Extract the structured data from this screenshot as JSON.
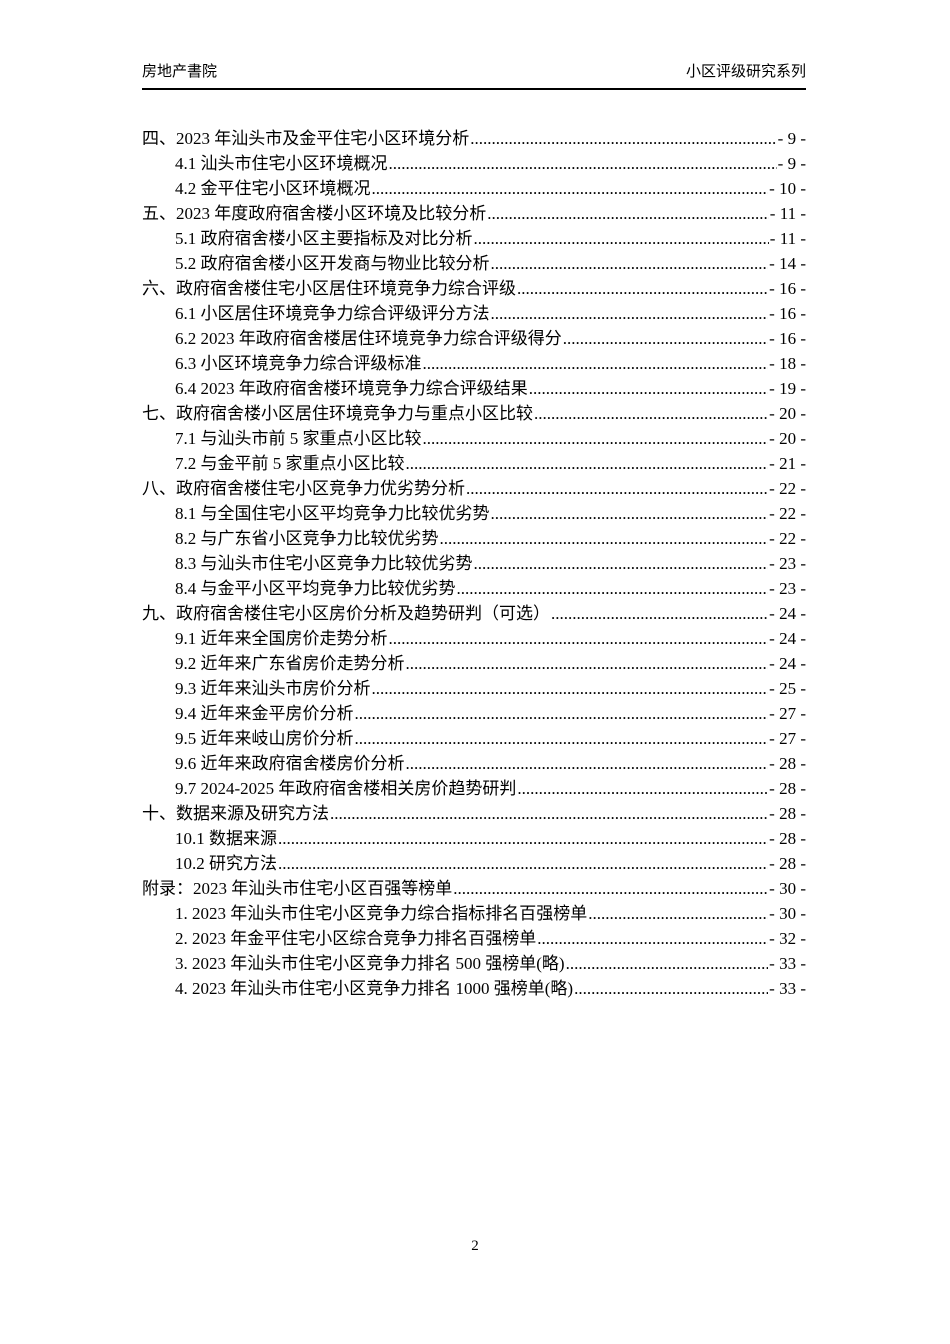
{
  "header": {
    "left": "房地产書院",
    "right": "小区评级研究系列"
  },
  "toc": {
    "entries": [
      {
        "level": 1,
        "text": "四、2023 年汕头市及金平住宅小区环境分析",
        "page": "- 9 -"
      },
      {
        "level": 2,
        "text": "4.1 汕头市住宅小区环境概况",
        "page": "- 9 -"
      },
      {
        "level": 2,
        "text": "4.2 金平住宅小区环境概况",
        "page": "- 10 -"
      },
      {
        "level": 1,
        "text": "五、2023 年度政府宿舍楼小区环境及比较分析",
        "page": "- 11 -"
      },
      {
        "level": 2,
        "text": "5.1 政府宿舍楼小区主要指标及对比分析",
        "page": "- 11 -"
      },
      {
        "level": 2,
        "text": "5.2 政府宿舍楼小区开发商与物业比较分析",
        "page": "- 14 -"
      },
      {
        "level": 1,
        "text": "六、政府宿舍楼住宅小区居住环境竞争力综合评级",
        "page": "- 16 -"
      },
      {
        "level": 2,
        "text": "6.1 小区居住环境竞争力综合评级评分方法",
        "page": "- 16 -"
      },
      {
        "level": 2,
        "text": "6.2 2023 年政府宿舍楼居住环境竞争力综合评级得分",
        "page": "- 16 -"
      },
      {
        "level": 2,
        "text": "6.3 小区环境竞争力综合评级标准",
        "page": "- 18 -"
      },
      {
        "level": 2,
        "text": "6.4 2023 年政府宿舍楼环境竞争力综合评级结果",
        "page": "- 19 -"
      },
      {
        "level": 1,
        "text": "七、政府宿舍楼小区居住环境竞争力与重点小区比较",
        "page": "- 20 -"
      },
      {
        "level": 2,
        "text": "7.1 与汕头市前 5 家重点小区比较",
        "page": "- 20 -"
      },
      {
        "level": 2,
        "text": "7.2 与金平前 5 家重点小区比较",
        "page": "- 21 -"
      },
      {
        "level": 1,
        "text": "八、政府宿舍楼住宅小区竞争力优劣势分析",
        "page": "- 22 -"
      },
      {
        "level": 2,
        "text": "8.1 与全国住宅小区平均竞争力比较优劣势",
        "page": "- 22 -"
      },
      {
        "level": 2,
        "text": "8.2 与广东省小区竞争力比较优劣势",
        "page": "- 22 -"
      },
      {
        "level": 2,
        "text": "8.3 与汕头市住宅小区竞争力比较优劣势",
        "page": "- 23 -"
      },
      {
        "level": 2,
        "text": "8.4 与金平小区平均竞争力比较优劣势",
        "page": "- 23 -"
      },
      {
        "level": 1,
        "text": "九、政府宿舍楼住宅小区房价分析及趋势研判（可选）",
        "page": "- 24 -"
      },
      {
        "level": 2,
        "text": "9.1 近年来全国房价走势分析",
        "page": "- 24 -"
      },
      {
        "level": 2,
        "text": "9.2 近年来广东省房价走势分析",
        "page": "- 24 -"
      },
      {
        "level": 2,
        "text": "9.3 近年来汕头市房价分析",
        "page": "- 25 -"
      },
      {
        "level": 2,
        "text": "9.4 近年来金平房价分析",
        "page": "- 27 -"
      },
      {
        "level": 2,
        "text": "9.5 近年来岐山房价分析",
        "page": "- 27 -"
      },
      {
        "level": 2,
        "text": "9.6 近年来政府宿舍楼房价分析",
        "page": "- 28 -"
      },
      {
        "level": 2,
        "text": "9.7 2024-2025 年政府宿舍楼相关房价趋势研判",
        "page": "- 28 -"
      },
      {
        "level": 1,
        "text": "十、数据来源及研究方法",
        "page": "- 28 -"
      },
      {
        "level": 2,
        "text": "10.1 数据来源",
        "page": "- 28 -"
      },
      {
        "level": 2,
        "text": "10.2 研究方法",
        "page": "- 28 -"
      },
      {
        "level": 1,
        "text": "附录：2023 年汕头市住宅小区百强等榜单",
        "page": "- 30 -"
      },
      {
        "level": 2,
        "text": "1. 2023 年汕头市住宅小区竞争力综合指标排名百强榜单",
        "page": "- 30 -"
      },
      {
        "level": 2,
        "text": "2. 2023 年金平住宅小区综合竞争力排名百强榜单",
        "page": "- 32 -"
      },
      {
        "level": 2,
        "text": "3. 2023 年汕头市住宅小区竞争力排名 500 强榜单(略)",
        "page": "- 33 -"
      },
      {
        "level": 2,
        "text": "4. 2023 年汕头市住宅小区竞争力排名 1000 强榜单(略)",
        "page": "- 33 -"
      }
    ]
  },
  "footer": {
    "page_number": "2"
  }
}
